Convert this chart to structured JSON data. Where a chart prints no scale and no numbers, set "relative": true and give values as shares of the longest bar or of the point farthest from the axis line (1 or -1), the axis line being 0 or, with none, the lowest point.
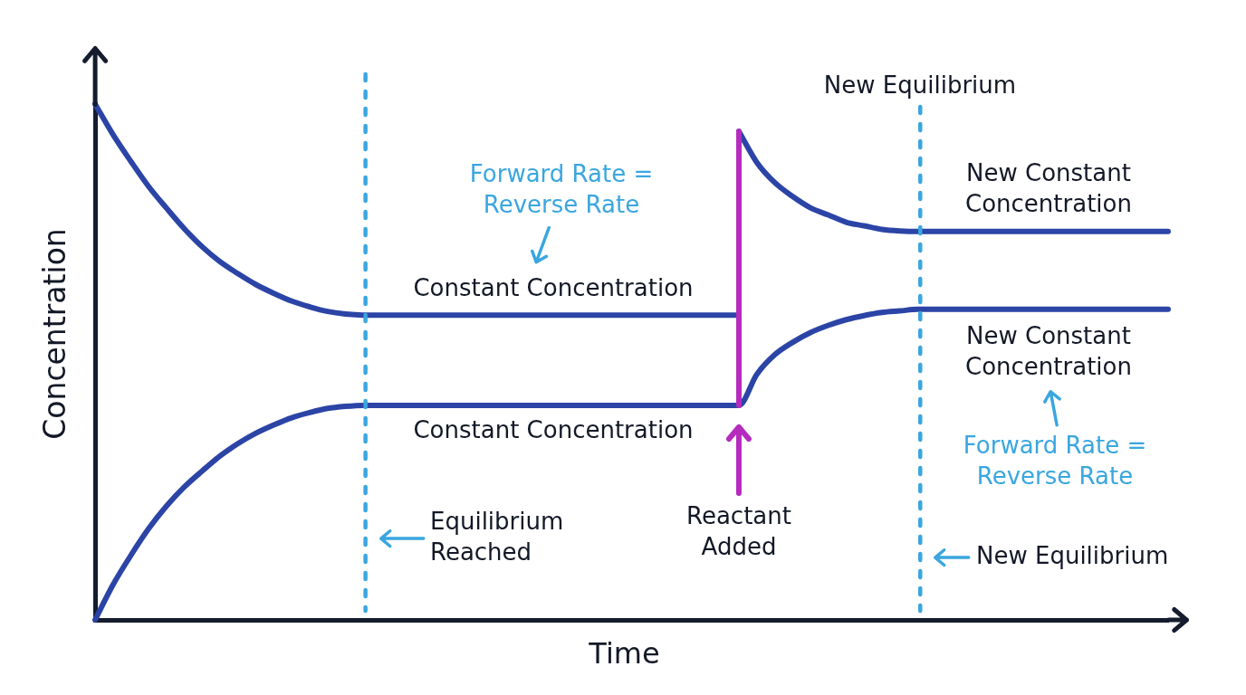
{
  "chart_data": {
    "type": "line",
    "xlabel": "Time",
    "ylabel": "Concentration",
    "relative": true,
    "categories": [
      null,
      null,
      null,
      null,
      null,
      null,
      null,
      null,
      null,
      null,
      null,
      null,
      null,
      null,
      null,
      null,
      null,
      null,
      null,
      null,
      null,
      null,
      null,
      null,
      null,
      null,
      null,
      null,
      null,
      null,
      null,
      null,
      null,
      null,
      null,
      null,
      null,
      null,
      null,
      null,
      null,
      null,
      null,
      null,
      null,
      null,
      null,
      null,
      null,
      null,
      null,
      null,
      null,
      null,
      null,
      null,
      null,
      null,
      null,
      null,
      null
    ],
    "series": [
      {
        "color": "#2b44a6",
        "values": [
          1,
          0.941,
          0.889,
          0.84,
          0.798,
          0.758,
          0.723,
          0.694,
          0.671,
          0.65,
          0.633,
          0.618,
          0.607,
          0.598,
          0.593,
          0.591,
          0.591,
          0.591,
          0.591,
          0.591,
          0.591,
          0.591,
          0.591,
          0.591,
          0.591,
          0.591,
          0.591,
          0.591,
          0.591,
          0.591,
          0.591,
          0.591,
          0.591,
          0.591,
          0.591,
          0.591,
          0.591,
          null,
          null,
          null,
          null,
          null,
          null,
          null,
          null,
          null,
          null,
          null,
          null,
          null,
          null,
          null,
          null,
          null,
          null,
          null,
          null,
          null,
          null,
          null,
          null
        ]
      },
      {
        "color": "#2b44a6",
        "values": [
          null,
          null,
          null,
          null,
          null,
          null,
          null,
          null,
          null,
          null,
          null,
          null,
          null,
          null,
          null,
          null,
          null,
          null,
          null,
          null,
          null,
          null,
          null,
          null,
          null,
          null,
          null,
          null,
          null,
          null,
          null,
          null,
          null,
          null,
          null,
          null,
          0.947,
          0.887,
          0.848,
          0.821,
          0.799,
          0.785,
          0.771,
          0.764,
          0.757,
          0.754,
          0.753,
          0.753,
          0.753,
          0.753,
          0.753,
          0.753,
          0.753,
          0.753,
          0.753,
          0.753,
          0.753,
          0.753,
          0.753,
          0.753,
          0.753
        ]
      },
      {
        "color": "#2b44a6",
        "values": [
          0,
          0.068,
          0.125,
          0.177,
          0.221,
          0.258,
          0.289,
          0.318,
          0.342,
          0.362,
          0.378,
          0.392,
          0.402,
          0.41,
          0.414,
          0.416,
          0.416,
          0.416,
          0.416,
          0.416,
          0.416,
          0.416,
          0.416,
          0.416,
          0.416,
          0.416,
          0.416,
          0.416,
          0.416,
          0.416,
          0.416,
          0.416,
          0.416,
          0.416,
          0.416,
          0.416,
          0.416,
          0.476,
          0.514,
          0.538,
          0.557,
          0.571,
          0.582,
          0.59,
          0.596,
          0.599,
          0.602,
          0.602,
          0.602,
          0.602,
          0.602,
          0.602,
          0.602,
          0.602,
          0.602,
          0.602,
          0.602,
          0.602,
          0.602,
          0.602,
          0.602
        ]
      }
    ],
    "annotations": [
      "Forward Rate =\nReverse Rate",
      "Constant Concentration",
      "Constant Concentration",
      "New Equilibrium",
      "New Constant\nConcentration",
      "New Constant\nConcentration",
      "Forward Rate =\nReverse Rate",
      "Equilibrium\nReached",
      "Reactant\nAdded",
      "New Equilibrium"
    ]
  }
}
